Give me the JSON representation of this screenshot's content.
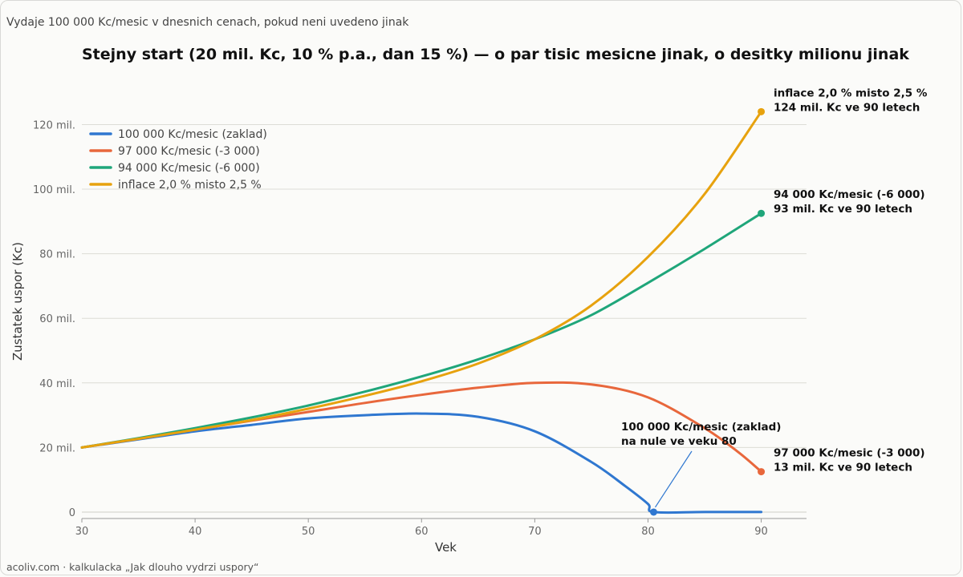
{
  "header": {
    "subtitle": "Vydaje 100 000 Kc/mesic v dnesnich cenach, pokud neni uvedeno jinak",
    "title": "Stejny start (20 mil. Kc, 10 % p.a., dan 15 %) — o par tisic mesicne jinak, o desitky milionu jinak"
  },
  "footer": {
    "text": "acoliv.com  ·  kalkulacka „Jak dlouho vydrzi uspory“"
  },
  "chart_data": {
    "type": "line",
    "xlabel": "Vek",
    "ylabel": "Zustatek uspor (Kc)",
    "xlim": [
      30,
      94
    ],
    "ylim": [
      -2,
      135
    ],
    "xticks": [
      30,
      40,
      50,
      60,
      70,
      80,
      90
    ],
    "yticks": [
      {
        "value": 0,
        "label": "0"
      },
      {
        "value": 20,
        "label": "20 mil."
      },
      {
        "value": 40,
        "label": "40 mil."
      },
      {
        "value": 60,
        "label": "60 mil."
      },
      {
        "value": 80,
        "label": "80 mil."
      },
      {
        "value": 100,
        "label": "100 mil."
      },
      {
        "value": 120,
        "label": "120 mil."
      }
    ],
    "grid": "horizontal",
    "legend_position": "top-left",
    "series": [
      {
        "name": "100 000 Kc/mesic (zaklad)",
        "color": "#2f77d0",
        "x": [
          30,
          35,
          40,
          45,
          50,
          55,
          60,
          65,
          70,
          75,
          78,
          80,
          80.5,
          85,
          90
        ],
        "y": [
          20,
          22.5,
          25,
          27,
          29,
          30,
          30.5,
          29.5,
          25,
          15.5,
          8,
          2.5,
          0,
          0,
          0
        ]
      },
      {
        "name": "97 000 Kc/mesic (-3 000)",
        "color": "#e8673c",
        "x": [
          30,
          35,
          40,
          45,
          50,
          55,
          60,
          65,
          70,
          75,
          80,
          85,
          88,
          90
        ],
        "y": [
          20,
          22.7,
          25.5,
          28.3,
          31,
          33.8,
          36.3,
          38.5,
          40,
          39.5,
          35.5,
          26,
          18.5,
          12.5
        ]
      },
      {
        "name": "94 000 Kc/mesic (-6 000)",
        "color": "#1fa67a",
        "x": [
          30,
          35,
          40,
          45,
          50,
          55,
          60,
          65,
          70,
          75,
          80,
          85,
          90
        ],
        "y": [
          20,
          22.9,
          26,
          29.3,
          33,
          37.3,
          42,
          47.3,
          53.5,
          61,
          71,
          81.5,
          92.5
        ]
      },
      {
        "name": "inflace 2,0 % misto 2,5 %",
        "color": "#e7a20e",
        "x": [
          30,
          35,
          40,
          45,
          50,
          55,
          60,
          65,
          70,
          75,
          80,
          85,
          90
        ],
        "y": [
          20,
          22.7,
          25.5,
          28.5,
          32,
          36,
          40.5,
          46,
          53.5,
          64,
          79,
          98.5,
          124
        ]
      }
    ],
    "annotations": [
      {
        "color": "#e7a20e",
        "point": [
          90,
          124
        ],
        "lines": [
          "inflace 2,0 % misto 2,5 %",
          "124 mil. Kc ve 90 letech"
        ]
      },
      {
        "color": "#1fa67a",
        "point": [
          90,
          92.5
        ],
        "lines": [
          "94 000 Kc/mesic (-6 000)",
          "93 mil. Kc ve 90 letech"
        ]
      },
      {
        "color": "#e8673c",
        "point": [
          90,
          12.5
        ],
        "lines": [
          "97 000 Kc/mesic (-3 000)",
          "13 mil. Kc ve 90 letech"
        ]
      },
      {
        "color": "#2f77d0",
        "point": [
          80.5,
          0
        ],
        "lines": [
          "100 000 Kc/mesic (zaklad)",
          "na nule ve veku 80"
        ],
        "arrow": true
      }
    ]
  }
}
